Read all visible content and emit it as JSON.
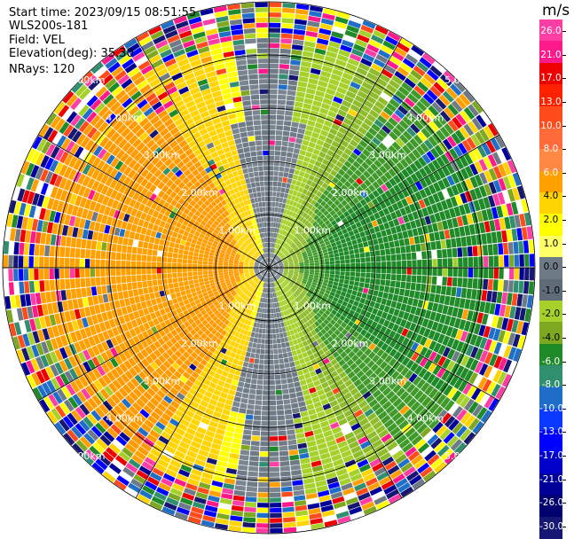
{
  "info": {
    "start_time": "Start time: 2023/09/15 08:51:55",
    "instrument": "WLS200s-181",
    "field": "Field: VEL",
    "elevation": "Elevation(deg): 35.30",
    "nrays": "NRays: 120"
  },
  "colorbar": {
    "unit": "m/s",
    "labels": [
      "26.0",
      "21.0",
      "17.0",
      "13.0",
      "10.0",
      "8.0",
      "6.0",
      "4.0",
      "2.0",
      "1.0",
      "0.0",
      "-1.0",
      "-2.0",
      "-4.0",
      "-6.0",
      "-8.0",
      "-10.0",
      "-13.0",
      "-17.0",
      "-21.0",
      "-26.0",
      "-30.0"
    ],
    "colors": [
      "#ff3ea5",
      "#ff1a8c",
      "#ee0000",
      "#ff2200",
      "#ff4c1a",
      "#ff6a3a",
      "#ff8844",
      "#ffa000",
      "#ffd400",
      "#ffff00",
      "#ffff66",
      "#6e7a86",
      "#5f6b77",
      "#a5d12a",
      "#7fa821",
      "#1f8a28",
      "#2f8f6f",
      "#1f6fc8",
      "#0b39ff",
      "#0000ff",
      "#0000c8",
      "#000099",
      "#000070",
      "#161673"
    ]
  },
  "plot": {
    "rings": [
      "1.00km",
      "2.00km",
      "3.00km",
      "4.00km",
      "5.00km"
    ]
  }
}
